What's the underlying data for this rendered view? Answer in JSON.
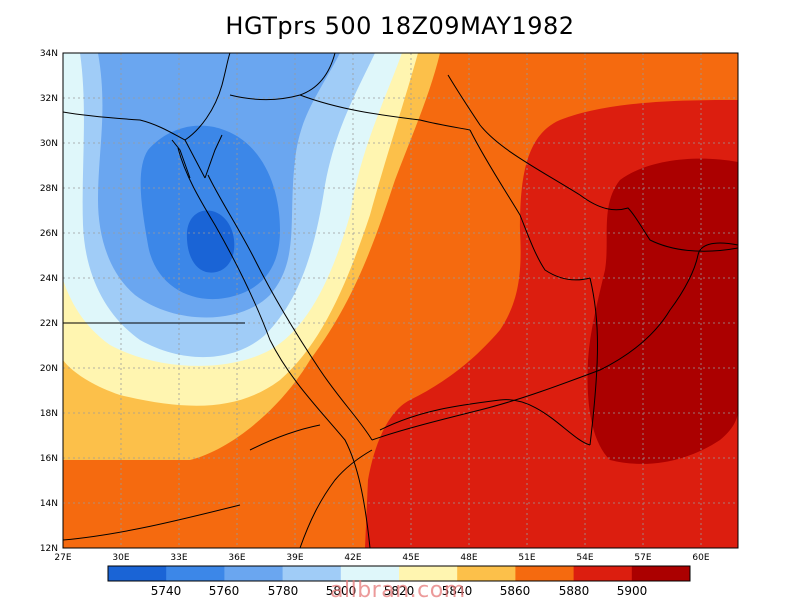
{
  "title": "HGTprs 500 18Z09MAY1982",
  "lat_labels": [
    "34N",
    "32N",
    "30N",
    "28N",
    "26N",
    "24N",
    "22N",
    "20N",
    "18N",
    "16N",
    "14N",
    "12N"
  ],
  "lon_labels": [
    "27E",
    "30E",
    "33E",
    "36E",
    "39E",
    "42E",
    "45E",
    "48E",
    "51E",
    "54E",
    "57E",
    "60E"
  ],
  "colorbar": {
    "labels": [
      "5740",
      "5760",
      "5780",
      "5800",
      "5820",
      "5840",
      "5860",
      "5880",
      "5900"
    ],
    "colors": [
      "#1a64d6",
      "#3c87e8",
      "#6aa6f0",
      "#a0ccf7",
      "#dff7fa",
      "#fff5b0",
      "#fcc04a",
      "#f56a0f",
      "#dc1e0f",
      "#ab0000"
    ]
  },
  "watermark": "allbran.com",
  "colors": {
    "background": "#ffffff",
    "grid": "#9a9a9a",
    "border": "#000000"
  }
}
